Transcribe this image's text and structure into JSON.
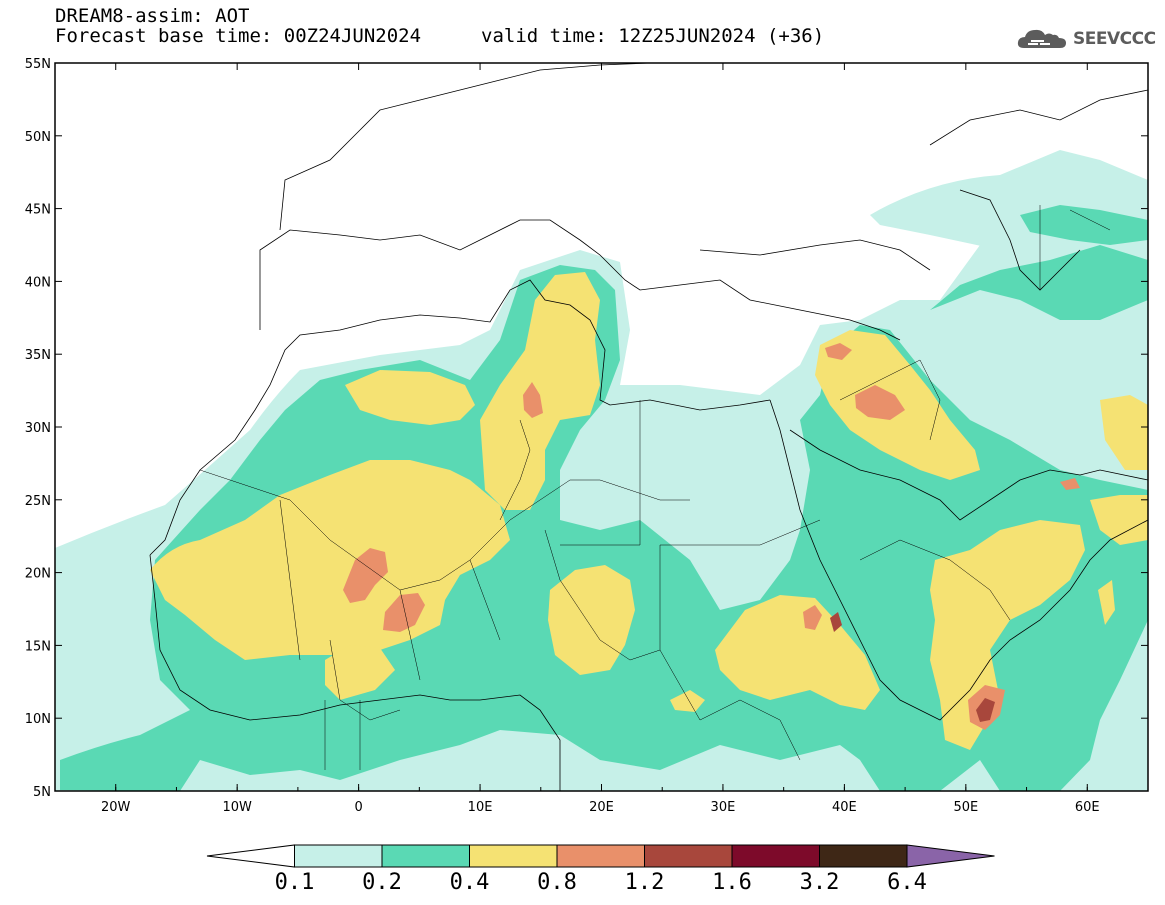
{
  "header": {
    "line1": "DREAM8-assim: AOT",
    "line2": "Forecast base time: 00Z24JUN2024",
    "valid": "valid time: 12Z25JUN2024 (+36)"
  },
  "logo": {
    "icon": "cloud-icon",
    "text": "SEEVCCC"
  },
  "map": {
    "lat_range": [
      5,
      55
    ],
    "lon_range": [
      -25,
      65
    ],
    "lat_labels": [
      "55N",
      "50N",
      "45N",
      "40N",
      "35N",
      "30N",
      "25N",
      "20N",
      "15N",
      "10N",
      "5N"
    ],
    "lon_labels": [
      "20W",
      "10W",
      "0",
      "10E",
      "20E",
      "30E",
      "40E",
      "50E",
      "60E"
    ]
  },
  "colorbar": {
    "labels": [
      "0.1",
      "0.2",
      "0.4",
      "0.8",
      "1.2",
      "1.6",
      "3.2",
      "6.4"
    ],
    "colors": [
      "#ffffff",
      "#c6f0e8",
      "#5ad9b4",
      "#f5e273",
      "#e9906a",
      "#a8473c",
      "#7d0a2a",
      "#3e2716",
      "#8a64a8"
    ]
  }
}
